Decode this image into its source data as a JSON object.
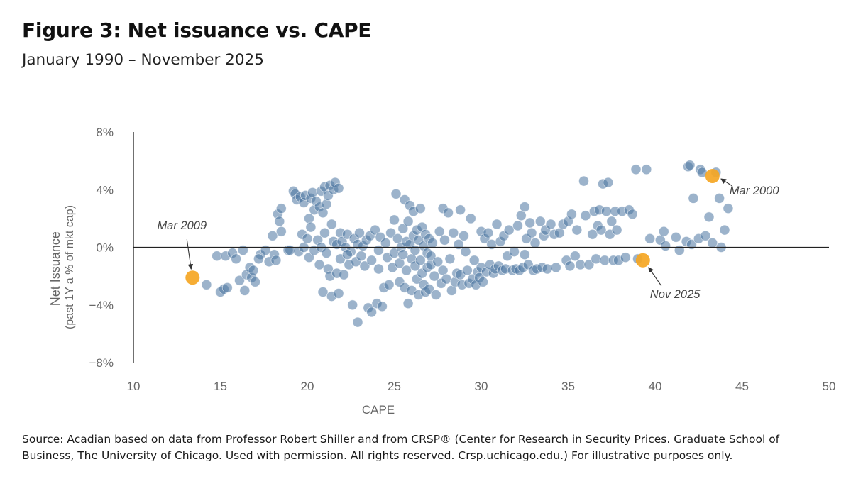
{
  "title": "Figure 3: Net issuance vs. CAPE",
  "subtitle": "January 1990 – November 2025",
  "source": "Source: Acadian based on data from Professor Robert Shiller and from CRSP® (Center for Research in Security Prices. Graduate School of Business, The University of Chicago. Used with permission. All rights reserved. Crsp.uchicago.edu.) For illustrative purposes only.",
  "chart_data": {
    "type": "scatter",
    "xlabel": "CAPE",
    "ylabel_lines": [
      "Net Issuance",
      "(past 1Y a % of mkt cap)"
    ],
    "xlim": [
      10,
      50
    ],
    "ylim": [
      -8,
      8
    ],
    "x_ticks": [
      10,
      15,
      20,
      25,
      30,
      35,
      40,
      45,
      50
    ],
    "y_ticks": [
      8,
      4,
      0,
      -4,
      -8
    ],
    "x_tick_labels": [
      "10",
      "15",
      "20",
      "25",
      "30",
      "35",
      "40",
      "45",
      "50"
    ],
    "y_tick_labels": [
      "8%",
      "4%",
      "0%",
      "−4%",
      "−8%"
    ],
    "grid": false,
    "zero_line": true,
    "colors": {
      "points": "#4a74a0",
      "highlight": "#f5a623",
      "axis": "#222222",
      "text": "#666666"
    },
    "series": [
      {
        "points": [
          [
            14.2,
            -2.6
          ],
          [
            14.8,
            -0.6
          ],
          [
            15.0,
            -3.1
          ],
          [
            15.2,
            -2.9
          ],
          [
            15.3,
            -0.6
          ],
          [
            15.4,
            -2.8
          ],
          [
            15.7,
            -0.4
          ],
          [
            15.9,
            -0.8
          ],
          [
            16.1,
            -2.3
          ],
          [
            16.3,
            -0.2
          ],
          [
            16.4,
            -3.0
          ],
          [
            16.5,
            -1.9
          ],
          [
            16.7,
            -1.4
          ],
          [
            16.8,
            -2.1
          ],
          [
            17.0,
            -2.4
          ],
          [
            17.3,
            -0.5
          ],
          [
            17.6,
            -0.2
          ],
          [
            17.8,
            -1.0
          ],
          [
            18.0,
            0.8
          ],
          [
            18.1,
            -0.5
          ],
          [
            18.2,
            -0.9
          ],
          [
            18.3,
            2.3
          ],
          [
            18.4,
            1.8
          ],
          [
            18.5,
            2.7
          ],
          [
            18.5,
            1.1
          ],
          [
            18.9,
            -0.2
          ],
          [
            19.2,
            3.9
          ],
          [
            19.3,
            3.7
          ],
          [
            19.4,
            3.3
          ],
          [
            19.5,
            -0.3
          ],
          [
            19.6,
            3.5
          ],
          [
            19.7,
            0.9
          ],
          [
            19.8,
            3.1
          ],
          [
            19.8,
            0.0
          ],
          [
            19.9,
            3.6
          ],
          [
            20.0,
            0.6
          ],
          [
            20.1,
            2.0
          ],
          [
            20.1,
            -0.7
          ],
          [
            20.2,
            3.4
          ],
          [
            20.2,
            1.4
          ],
          [
            20.3,
            3.8
          ],
          [
            20.4,
            2.6
          ],
          [
            20.4,
            -0.2
          ],
          [
            20.5,
            3.2
          ],
          [
            20.6,
            0.5
          ],
          [
            20.7,
            2.8
          ],
          [
            20.7,
            -1.2
          ],
          [
            20.8,
            3.9
          ],
          [
            20.8,
            0.0
          ],
          [
            20.9,
            2.4
          ],
          [
            20.9,
            -3.1
          ],
          [
            21.0,
            4.2
          ],
          [
            21.0,
            1.0
          ],
          [
            21.1,
            3.0
          ],
          [
            21.1,
            -0.4
          ],
          [
            21.2,
            3.6
          ],
          [
            21.2,
            -1.5
          ],
          [
            21.3,
            4.3
          ],
          [
            21.3,
            -2.0
          ],
          [
            21.4,
            1.6
          ],
          [
            21.4,
            -3.4
          ],
          [
            21.5,
            4.0
          ],
          [
            21.5,
            0.4
          ],
          [
            21.6,
            4.5
          ],
          [
            21.7,
            0.2
          ],
          [
            21.7,
            -1.8
          ],
          [
            21.8,
            4.1
          ],
          [
            21.8,
            -3.2
          ],
          [
            21.9,
            1.0
          ],
          [
            21.9,
            -0.8
          ],
          [
            22.0,
            0.4
          ],
          [
            22.1,
            -1.9
          ],
          [
            22.2,
            0.0
          ],
          [
            22.3,
            0.9
          ],
          [
            22.4,
            -1.2
          ],
          [
            22.5,
            -0.3
          ],
          [
            22.6,
            -4.0
          ],
          [
            22.7,
            0.6
          ],
          [
            22.8,
            -1.0
          ],
          [
            22.9,
            -5.2
          ],
          [
            22.9,
            0.2
          ],
          [
            23.0,
            1.0
          ],
          [
            23.1,
            -0.6
          ],
          [
            23.2,
            0.1
          ],
          [
            23.3,
            -1.3
          ],
          [
            23.4,
            0.5
          ],
          [
            23.5,
            -4.2
          ],
          [
            23.6,
            0.8
          ],
          [
            23.7,
            -4.5
          ],
          [
            23.7,
            -0.9
          ],
          [
            23.9,
            1.2
          ],
          [
            24.0,
            -3.9
          ],
          [
            24.1,
            -0.2
          ],
          [
            24.1,
            -1.5
          ],
          [
            24.2,
            0.7
          ],
          [
            24.3,
            -4.1
          ],
          [
            24.4,
            -2.8
          ],
          [
            24.5,
            0.3
          ],
          [
            24.6,
            -0.7
          ],
          [
            24.7,
            -2.6
          ],
          [
            24.8,
            1.0
          ],
          [
            24.9,
            -1.4
          ],
          [
            25.0,
            1.9
          ],
          [
            25.0,
            -0.4
          ],
          [
            25.1,
            3.7
          ],
          [
            25.2,
            0.6
          ],
          [
            25.3,
            -1.1
          ],
          [
            25.3,
            -2.4
          ],
          [
            25.4,
            0.0
          ],
          [
            25.5,
            1.3
          ],
          [
            25.5,
            -0.5
          ],
          [
            25.6,
            3.3
          ],
          [
            25.6,
            -2.8
          ],
          [
            25.7,
            0.4
          ],
          [
            25.7,
            -1.6
          ],
          [
            25.8,
            1.8
          ],
          [
            25.8,
            -3.9
          ],
          [
            25.9,
            0.2
          ],
          [
            25.9,
            2.9
          ],
          [
            26.0,
            -0.8
          ],
          [
            26.0,
            -3.0
          ],
          [
            26.1,
            0.8
          ],
          [
            26.1,
            2.5
          ],
          [
            26.2,
            -1.3
          ],
          [
            26.2,
            -0.2
          ],
          [
            26.3,
            1.2
          ],
          [
            26.3,
            -2.2
          ],
          [
            26.4,
            0.5
          ],
          [
            26.4,
            -3.3
          ],
          [
            26.5,
            2.7
          ],
          [
            26.5,
            -0.9
          ],
          [
            26.6,
            1.4
          ],
          [
            26.6,
            -1.8
          ],
          [
            26.7,
            0.1
          ],
          [
            26.7,
            -2.6
          ],
          [
            26.8,
            0.9
          ],
          [
            26.8,
            -3.1
          ],
          [
            26.9,
            -0.4
          ],
          [
            26.9,
            -1.4
          ],
          [
            27.0,
            0.6
          ],
          [
            27.0,
            -2.9
          ],
          [
            27.1,
            -1.2
          ],
          [
            27.1,
            -0.6
          ],
          [
            27.2,
            0.3
          ],
          [
            27.3,
            -2.0
          ],
          [
            27.4,
            -3.3
          ],
          [
            27.5,
            -1.0
          ],
          [
            27.6,
            1.1
          ],
          [
            27.7,
            -2.5
          ],
          [
            27.8,
            2.7
          ],
          [
            27.8,
            -1.6
          ],
          [
            27.9,
            0.5
          ],
          [
            28.0,
            -2.2
          ],
          [
            28.1,
            2.4
          ],
          [
            28.2,
            -0.8
          ],
          [
            28.3,
            -3.0
          ],
          [
            28.4,
            1.0
          ],
          [
            28.5,
            -2.4
          ],
          [
            28.6,
            -1.8
          ],
          [
            28.7,
            0.2
          ],
          [
            28.8,
            2.6
          ],
          [
            28.8,
            -1.9
          ],
          [
            28.9,
            -2.6
          ],
          [
            29.0,
            0.8
          ],
          [
            29.1,
            -0.3
          ],
          [
            29.2,
            -1.6
          ],
          [
            29.3,
            -2.5
          ],
          [
            29.4,
            2.0
          ],
          [
            29.5,
            -2.2
          ],
          [
            29.6,
            -0.9
          ],
          [
            29.7,
            -2.6
          ],
          [
            29.8,
            -1.7
          ],
          [
            29.9,
            -2.1
          ],
          [
            30.0,
            1.1
          ],
          [
            30.0,
            -1.4
          ],
          [
            30.1,
            -2.4
          ],
          [
            30.2,
            0.6
          ],
          [
            30.3,
            -1.7
          ],
          [
            30.4,
            1.0
          ],
          [
            30.5,
            -1.2
          ],
          [
            30.6,
            0.2
          ],
          [
            30.7,
            -1.8
          ],
          [
            30.8,
            -1.5
          ],
          [
            30.9,
            1.6
          ],
          [
            31.0,
            -1.3
          ],
          [
            31.1,
            0.4
          ],
          [
            31.2,
            -1.6
          ],
          [
            31.3,
            0.8
          ],
          [
            31.4,
            -1.5
          ],
          [
            31.5,
            -0.6
          ],
          [
            31.6,
            1.2
          ],
          [
            31.8,
            -1.6
          ],
          [
            31.9,
            -0.3
          ],
          [
            32.0,
            -1.5
          ],
          [
            32.1,
            1.5
          ],
          [
            32.2,
            -1.6
          ],
          [
            32.3,
            2.2
          ],
          [
            32.4,
            -1.4
          ],
          [
            32.5,
            2.8
          ],
          [
            32.5,
            -0.5
          ],
          [
            32.6,
            0.6
          ],
          [
            32.7,
            -1.2
          ],
          [
            32.8,
            1.7
          ],
          [
            32.9,
            1.0
          ],
          [
            33.0,
            -1.6
          ],
          [
            33.1,
            0.3
          ],
          [
            33.2,
            -1.5
          ],
          [
            33.4,
            1.8
          ],
          [
            33.5,
            -1.4
          ],
          [
            33.6,
            0.8
          ],
          [
            33.7,
            1.2
          ],
          [
            33.8,
            -1.5
          ],
          [
            34.0,
            1.6
          ],
          [
            34.2,
            0.9
          ],
          [
            34.3,
            -1.4
          ],
          [
            34.5,
            1.0
          ],
          [
            34.7,
            1.6
          ],
          [
            34.9,
            -0.9
          ],
          [
            35.0,
            1.8
          ],
          [
            35.1,
            -1.3
          ],
          [
            35.2,
            2.3
          ],
          [
            35.4,
            -0.6
          ],
          [
            35.5,
            1.2
          ],
          [
            35.7,
            -1.2
          ],
          [
            35.9,
            4.6
          ],
          [
            36.0,
            2.2
          ],
          [
            36.2,
            -1.2
          ],
          [
            36.4,
            0.9
          ],
          [
            36.5,
            2.5
          ],
          [
            36.6,
            -0.8
          ],
          [
            36.7,
            1.5
          ],
          [
            36.8,
            2.6
          ],
          [
            36.9,
            1.2
          ],
          [
            37.0,
            4.4
          ],
          [
            37.1,
            -0.9
          ],
          [
            37.2,
            2.5
          ],
          [
            37.3,
            4.5
          ],
          [
            37.4,
            0.9
          ],
          [
            37.5,
            1.8
          ],
          [
            37.6,
            -0.9
          ],
          [
            37.7,
            2.5
          ],
          [
            37.8,
            1.2
          ],
          [
            37.9,
            -0.9
          ],
          [
            38.1,
            2.5
          ],
          [
            38.3,
            -0.7
          ],
          [
            38.5,
            2.6
          ],
          [
            38.7,
            2.3
          ],
          [
            38.9,
            5.4
          ],
          [
            39.0,
            -0.8
          ],
          [
            39.5,
            5.4
          ],
          [
            39.7,
            0.6
          ],
          [
            40.3,
            0.5
          ],
          [
            40.5,
            1.1
          ],
          [
            40.6,
            0.1
          ],
          [
            41.2,
            0.7
          ],
          [
            41.4,
            -0.2
          ],
          [
            41.8,
            0.4
          ],
          [
            41.9,
            5.6
          ],
          [
            42.0,
            5.7
          ],
          [
            42.1,
            0.2
          ],
          [
            42.2,
            3.4
          ],
          [
            42.5,
            0.6
          ],
          [
            42.6,
            5.4
          ],
          [
            42.7,
            5.2
          ],
          [
            42.9,
            0.8
          ],
          [
            43.1,
            2.1
          ],
          [
            43.3,
            0.3
          ],
          [
            43.5,
            5.2
          ],
          [
            43.7,
            3.4
          ],
          [
            43.8,
            0.0
          ],
          [
            44.2,
            2.7
          ],
          [
            44.0,
            1.2
          ],
          [
            17.2,
            -0.8
          ],
          [
            16.9,
            -1.6
          ],
          [
            19.0,
            -0.2
          ],
          [
            22.3,
            -0.5
          ]
        ]
      }
    ],
    "highlights": [
      {
        "label": "Mar 2009",
        "x": 13.4,
        "y": -2.1
      },
      {
        "label": "Mar 2000",
        "x": 43.3,
        "y": 4.95
      },
      {
        "label": "Nov 2025",
        "x": 39.3,
        "y": -0.9
      }
    ]
  }
}
